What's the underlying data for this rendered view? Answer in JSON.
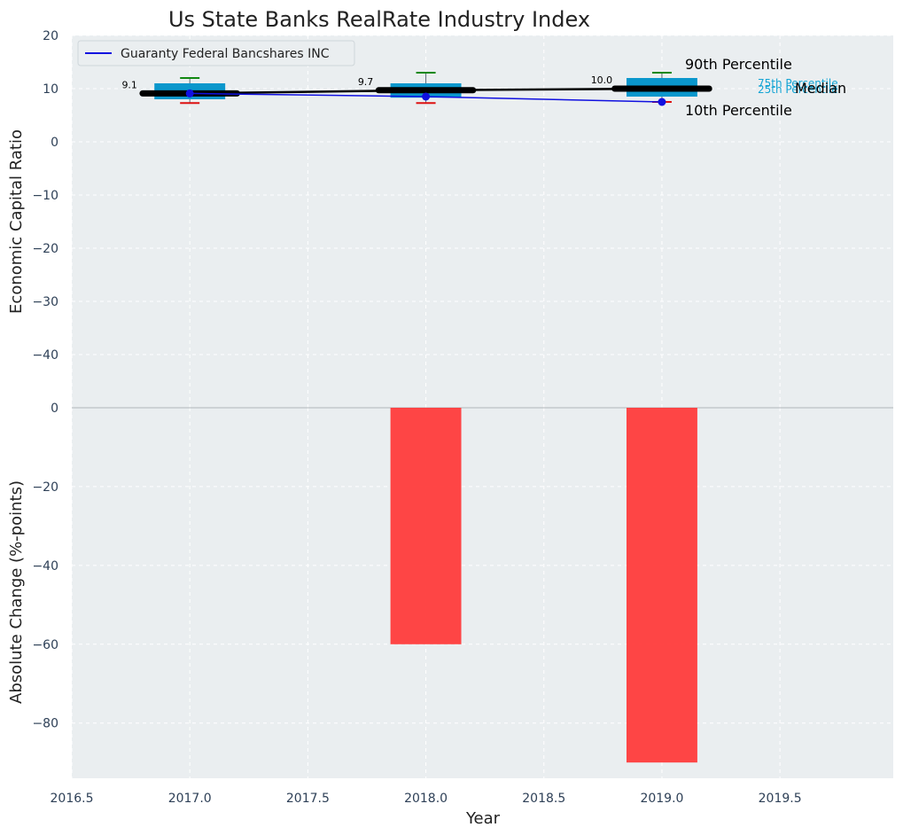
{
  "chart_data": [
    {
      "type": "box",
      "title": "Us State Banks RealRate Industry Index",
      "xlabel": "",
      "ylabel": "Economic Capital Ratio",
      "ylim": [
        -50,
        20
      ],
      "yticks": [
        20,
        10,
        0,
        -10,
        -20,
        -30,
        -40
      ],
      "grid": true,
      "legend": {
        "position": "top-left",
        "entries": [
          "Guaranty Federal Bancshares INC"
        ]
      },
      "x": [
        2017,
        2018,
        2019
      ],
      "boxes": [
        {
          "year": 2017,
          "p10": 7.3,
          "p25": 8.0,
          "median": 9.1,
          "p75": 11.0,
          "p90": 12.0
        },
        {
          "year": 2018,
          "p10": 7.3,
          "p25": 8.3,
          "median": 9.7,
          "p75": 11.0,
          "p90": 13.0
        },
        {
          "year": 2019,
          "p10": 7.5,
          "p25": 8.5,
          "median": 10.0,
          "p75": 12.0,
          "p90": 13.0
        }
      ],
      "median_labels": [
        "9.1",
        "9.7",
        "10.0"
      ],
      "company_series": {
        "name": "Guaranty Federal Bancshares INC",
        "values": [
          9.1,
          8.5,
          7.5
        ]
      },
      "annotations": {
        "p90": "90th Percentile",
        "p75": "75th Percentile",
        "median": "Median",
        "p25": "25th Percentile",
        "p10": "10th Percentile"
      }
    },
    {
      "type": "bar",
      "xlabel": "Year",
      "ylabel": "Absolute Change (%-points)",
      "ylim": [
        -94,
        0
      ],
      "yticks": [
        0,
        -20,
        -40,
        -60,
        -80
      ],
      "grid": true,
      "x": [
        2018,
        2019
      ],
      "values": [
        -60,
        -90
      ],
      "xlim": [
        2016.5,
        2019.98
      ],
      "xticks": [
        "2016.5",
        "2017.0",
        "2017.5",
        "2018.0",
        "2018.5",
        "2019.0",
        "2019.5"
      ]
    }
  ],
  "colors": {
    "plot_bg": "#eaeef0",
    "grid": "#ffffff",
    "box": "#0a97cc",
    "median": "#000000",
    "company": "#1010e0",
    "whisker_top": "#118811",
    "whisker_bottom": "#dd1111",
    "bar": "#ff3b3b",
    "tick_text": "#2e4057",
    "label_text": "#222222",
    "annot_small": "#13a4d4"
  }
}
